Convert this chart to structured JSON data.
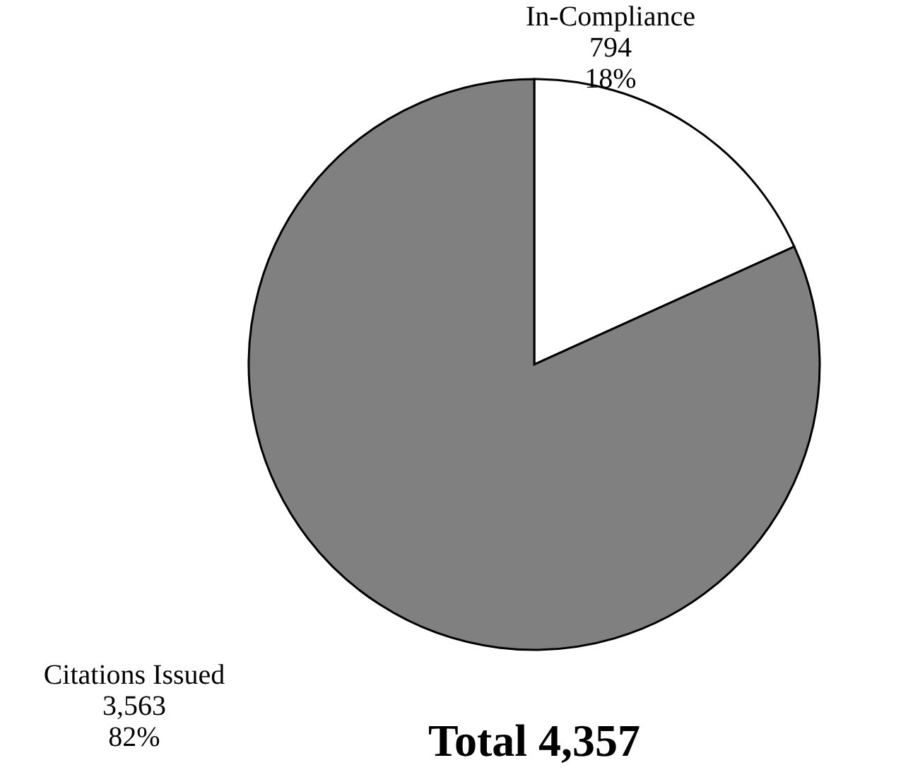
{
  "chart_data": {
    "type": "pie",
    "title": "Total 4,357",
    "categories": [
      "In-Compliance",
      "Citations Issued"
    ],
    "values": [
      794,
      3563
    ],
    "colors": [
      "#ffffff",
      "#808080"
    ],
    "value_labels": [
      "794\n18%",
      "3,563\n82%"
    ]
  }
}
